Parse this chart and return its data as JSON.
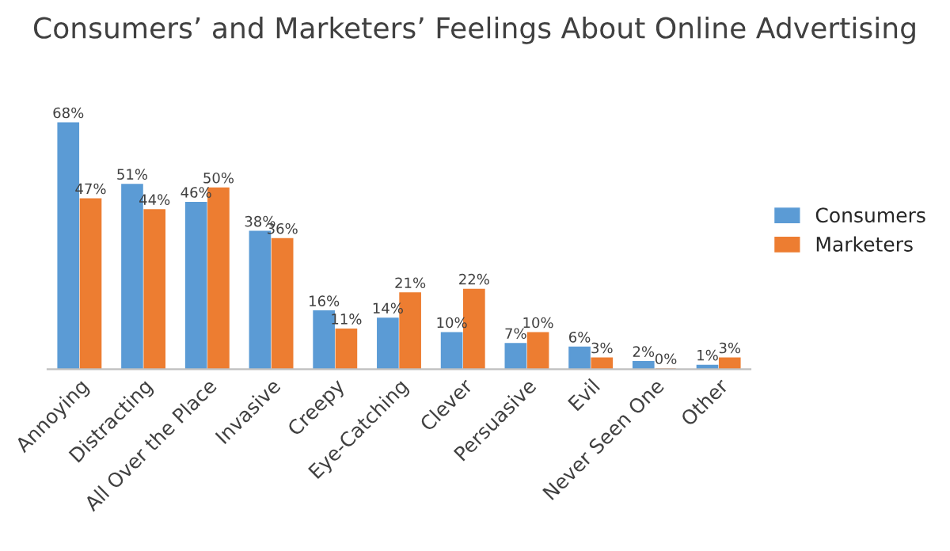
{
  "chart_data": {
    "type": "bar",
    "title": "Consumers’ and Marketers’ Feelings About Online Advertising",
    "categories": [
      "Annoying",
      "Distracting",
      "All Over the Place",
      "Invasive",
      "Creepy",
      "Eye-Catching",
      "Clever",
      "Persuasive",
      "Evil",
      "Never Seen One",
      "Other"
    ],
    "series": [
      {
        "name": "Consumers",
        "color": "#5b9bd5",
        "values": [
          68,
          51,
          46,
          38,
          16,
          14,
          10,
          7,
          6,
          2,
          1
        ],
        "value_labels": [
          "68%",
          "51%",
          "46%",
          "38%",
          "16%",
          "14%",
          "10%",
          "7%",
          "6%",
          "2%",
          "1%"
        ]
      },
      {
        "name": "Marketers",
        "color": "#ed7d31",
        "values": [
          47,
          44,
          50,
          36,
          11,
          21,
          22,
          10,
          3,
          0,
          3
        ],
        "value_labels": [
          "47%",
          "44%",
          "50%",
          "36%",
          "11%",
          "21%",
          "22%",
          "10%",
          "3%",
          "0%",
          "3%"
        ]
      }
    ],
    "legend": "right",
    "grid": false
  }
}
